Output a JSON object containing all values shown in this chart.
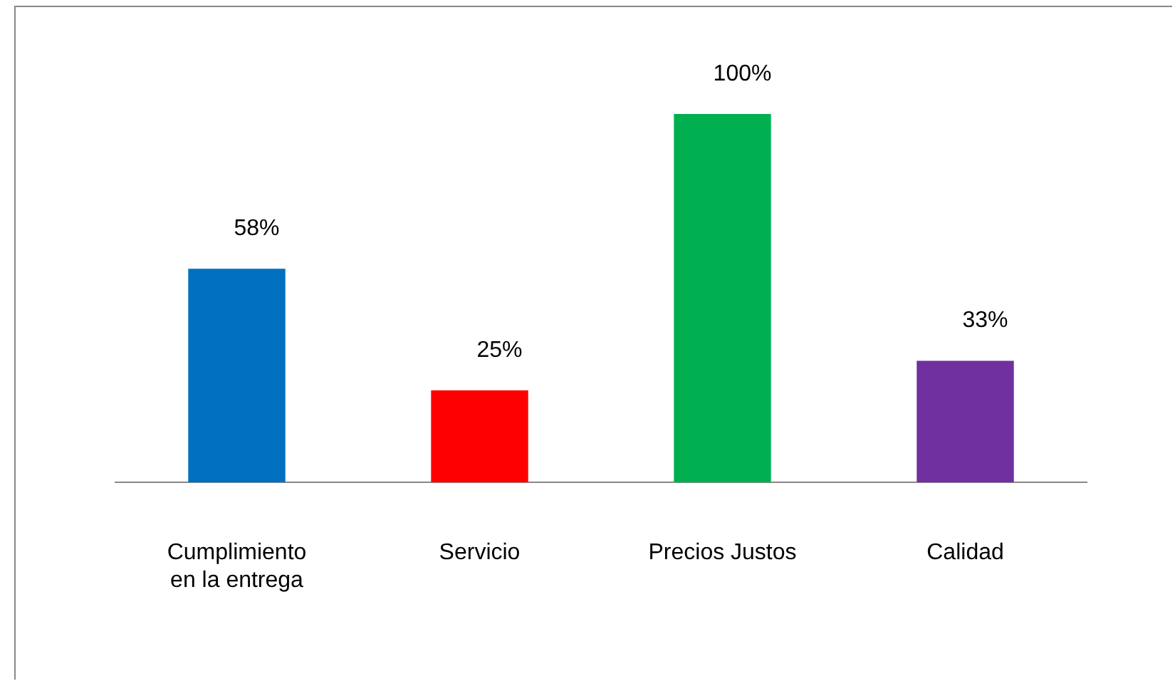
{
  "chart_data": {
    "type": "bar",
    "categories": [
      "Cumplimiento en la entrega",
      "Servicio",
      "Precios Justos",
      "Calidad"
    ],
    "values": [
      58,
      25,
      100,
      33
    ],
    "colors": [
      "#0070c0",
      "#ff0000",
      "#00b050",
      "#7030a0"
    ],
    "value_labels": [
      "58%",
      "25%",
      "100%",
      "33%"
    ],
    "grid": false,
    "legend": false
  }
}
